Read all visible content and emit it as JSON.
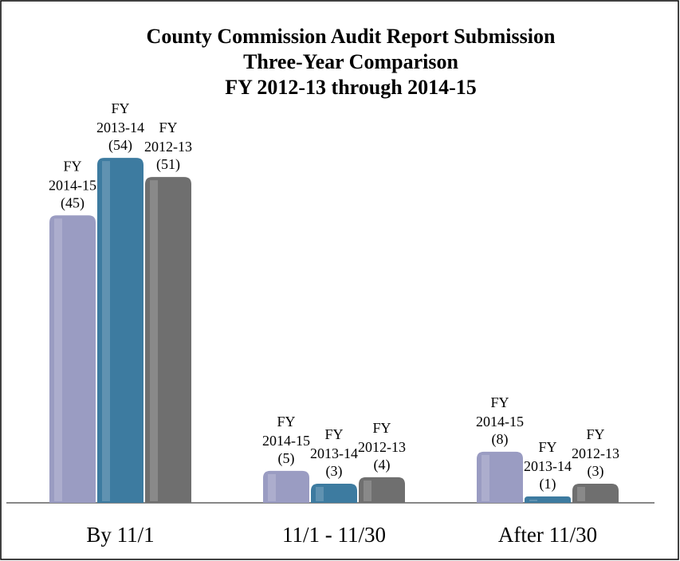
{
  "chart_data": {
    "type": "bar",
    "title": "County Commission Audit Report Submission",
    "subtitle": [
      "Three-Year Comparison",
      "FY 2012-13 through 2014-15"
    ],
    "categories": [
      "By 11/1",
      "11/1 - 11/30",
      "After 11/30"
    ],
    "series": [
      {
        "name": "FY 2014-15",
        "color": "#9a9cc2",
        "values": [
          45,
          5,
          8
        ],
        "value_labels": [
          "(45)",
          "(5)",
          "(8)"
        ]
      },
      {
        "name": "FY 2013-14",
        "color": "#3d7ba0",
        "values": [
          54,
          3,
          1
        ],
        "value_labels": [
          "(54)",
          "(3)",
          "(1)"
        ]
      },
      {
        "name": "FY 2012-13",
        "color": "#6f6f6f",
        "values": [
          51,
          4,
          3
        ],
        "value_labels": [
          "(51)",
          "(4)",
          "(3)"
        ]
      }
    ],
    "ylim": [
      0,
      60
    ]
  }
}
